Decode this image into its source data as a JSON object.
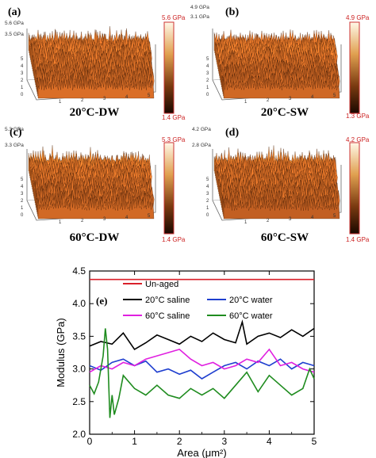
{
  "afm_panels": [
    {
      "label": "(a)",
      "caption": "20°C-DW",
      "cbar_max": "5.6 GPa",
      "cbar_min": "1.4 GPa",
      "z_top": "5.6 GPa",
      "z_mid": "3.5 GPa"
    },
    {
      "label": "(b)",
      "caption": "20°C-SW",
      "cbar_max": "4.9 GPa",
      "cbar_min": "1.3 GPa",
      "z_top": "4.9 GPa",
      "z_mid": "3.1 GPa"
    },
    {
      "label": "(c)",
      "caption": "60°C-DW",
      "cbar_max": "5.3 GPa",
      "cbar_min": "1.4 GPa",
      "z_top": "5.3 GPa",
      "z_mid": "3.3 GPa"
    },
    {
      "label": "(d)",
      "caption": "60°C-SW",
      "cbar_max": "4.2 GPa",
      "cbar_min": "1.4 GPa",
      "z_top": "4.2 GPa",
      "z_mid": "2.8 GPa"
    }
  ],
  "chart_data": {
    "type": "line",
    "panel_label": "(e)",
    "xlabel": "Area (μm²)",
    "ylabel": "Modulus (GPa)",
    "xlim": [
      0,
      5
    ],
    "ylim": [
      2.0,
      4.5
    ],
    "xticks": [
      "0",
      "1",
      "2",
      "3",
      "4",
      "5"
    ],
    "yticks": [
      "2.0",
      "2.5",
      "3.0",
      "3.5",
      "4.0",
      "4.5"
    ],
    "legend_position": "top",
    "series": [
      {
        "name": "Un-aged",
        "color": "#d9202a",
        "x": [
          0,
          5
        ],
        "y": [
          4.37,
          4.37
        ]
      },
      {
        "name": "20°C saline",
        "color": "#000000",
        "x": [
          0,
          0.25,
          0.5,
          0.75,
          1.0,
          1.25,
          1.5,
          1.75,
          2.0,
          2.25,
          2.5,
          2.75,
          3.0,
          3.25,
          3.4,
          3.5,
          3.75,
          4.0,
          4.25,
          4.5,
          4.75,
          5.0
        ],
        "y": [
          3.35,
          3.42,
          3.38,
          3.55,
          3.3,
          3.4,
          3.52,
          3.45,
          3.38,
          3.5,
          3.42,
          3.55,
          3.45,
          3.4,
          3.72,
          3.38,
          3.5,
          3.55,
          3.48,
          3.6,
          3.5,
          3.62
        ]
      },
      {
        "name": "20°C water",
        "color": "#1f3fcf",
        "x": [
          0,
          0.25,
          0.5,
          0.75,
          1.0,
          1.25,
          1.5,
          1.75,
          2.0,
          2.25,
          2.5,
          2.75,
          3.0,
          3.25,
          3.5,
          3.75,
          4.0,
          4.25,
          4.5,
          4.75,
          5.0
        ],
        "y": [
          3.05,
          2.98,
          3.1,
          3.15,
          3.05,
          3.12,
          2.95,
          3.0,
          2.92,
          2.98,
          2.85,
          2.95,
          3.05,
          3.1,
          3.0,
          3.12,
          3.05,
          3.15,
          3.0,
          3.1,
          3.05
        ]
      },
      {
        "name": "60°C saline",
        "color": "#e020e0",
        "x": [
          0,
          0.25,
          0.5,
          0.75,
          1.0,
          1.25,
          1.5,
          1.75,
          2.0,
          2.25,
          2.5,
          2.75,
          3.0,
          3.25,
          3.5,
          3.75,
          4.0,
          4.25,
          4.5,
          4.75,
          5.0
        ],
        "y": [
          2.95,
          3.05,
          3.0,
          3.1,
          3.05,
          3.15,
          3.2,
          3.25,
          3.3,
          3.15,
          3.05,
          3.1,
          3.0,
          3.05,
          3.15,
          3.1,
          3.3,
          3.05,
          3.1,
          3.0,
          2.95
        ]
      },
      {
        "name": "60°C water",
        "color": "#1f8c1f",
        "x": [
          0,
          0.1,
          0.2,
          0.3,
          0.35,
          0.4,
          0.45,
          0.5,
          0.55,
          0.65,
          0.75,
          1.0,
          1.25,
          1.5,
          1.75,
          2.0,
          2.25,
          2.5,
          2.75,
          3.0,
          3.25,
          3.5,
          3.75,
          4.0,
          4.25,
          4.5,
          4.75,
          4.9,
          5.0
        ],
        "y": [
          2.75,
          2.62,
          2.8,
          3.2,
          3.62,
          3.3,
          2.25,
          2.6,
          2.3,
          2.55,
          2.9,
          2.7,
          2.6,
          2.75,
          2.6,
          2.55,
          2.7,
          2.6,
          2.7,
          2.55,
          2.75,
          2.95,
          2.65,
          2.9,
          2.75,
          2.6,
          2.7,
          3.0,
          2.85
        ]
      }
    ]
  }
}
